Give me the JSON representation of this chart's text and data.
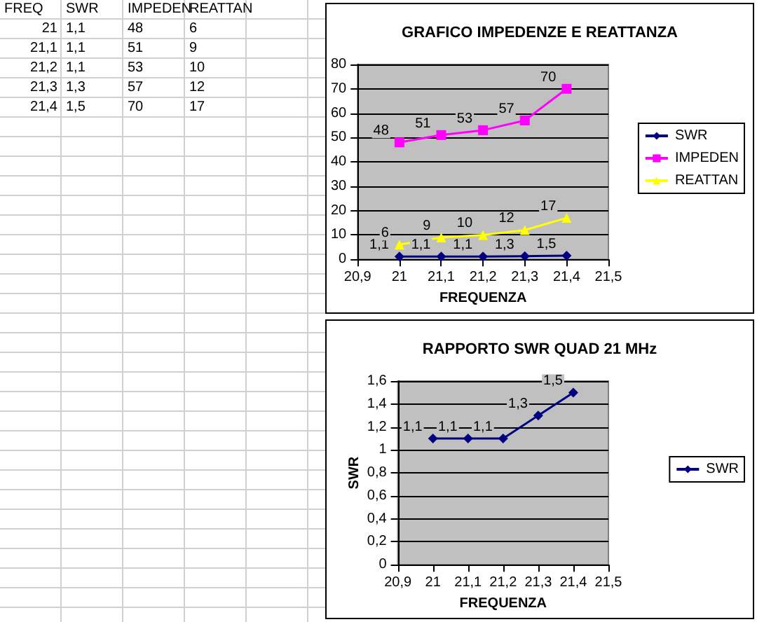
{
  "chart_data": [
    {
      "type": "line",
      "title": "GRAFICO IMPEDENZE E REATTANZA",
      "xlabel": "FREQUENZA",
      "annotations": [
        "FREQ"
      ],
      "x": [
        21,
        21.1,
        21.2,
        21.3,
        21.4
      ],
      "series": [
        {
          "name": "SWR",
          "color": "#000080",
          "marker": "diamond",
          "values": [
            1.1,
            1.1,
            1.1,
            1.3,
            1.5
          ],
          "value_labels": [
            "1,1",
            "1,1",
            "1,1",
            "1,3",
            "1,5"
          ]
        },
        {
          "name": "IMPEDEN",
          "color": "#ff00ff",
          "marker": "square",
          "values": [
            48,
            51,
            53,
            57,
            70
          ],
          "value_labels": [
            "48",
            "51",
            "53",
            "57",
            "70"
          ]
        },
        {
          "name": "REATTAN",
          "color": "#ffff00",
          "marker": "triangle",
          "values": [
            6,
            9,
            10,
            12,
            17
          ],
          "value_labels": [
            "6",
            "9",
            "10",
            "12",
            "17"
          ]
        }
      ],
      "xlim": [
        20.9,
        21.5
      ],
      "xticks": [
        {
          "value": 20.9,
          "label": "20,9"
        },
        {
          "value": 21,
          "label": "21"
        },
        {
          "value": 21.1,
          "label": "21,1"
        },
        {
          "value": 21.2,
          "label": "21,2"
        },
        {
          "value": 21.3,
          "label": "21,3"
        },
        {
          "value": 21.4,
          "label": "21,4"
        },
        {
          "value": 21.5,
          "label": "21,5"
        }
      ],
      "ylim": [
        0,
        80
      ],
      "yticks": [
        0,
        10,
        20,
        30,
        40,
        50,
        60,
        70,
        80
      ],
      "grid": "y",
      "legend": "right"
    },
    {
      "type": "line",
      "title": "RAPPORTO SWR QUAD 21 MHz",
      "xlabel": "FREQUENZA",
      "ylabel": "SWR",
      "x": [
        21,
        21.1,
        21.2,
        21.3,
        21.4
      ],
      "series": [
        {
          "name": "SWR",
          "color": "#000080",
          "marker": "diamond",
          "values": [
            1.1,
            1.1,
            1.1,
            1.3,
            1.5
          ],
          "value_labels": [
            "1,1",
            "1,1",
            "1,1",
            "1,3",
            "1,5"
          ]
        }
      ],
      "xlim": [
        20.9,
        21.5
      ],
      "xticks": [
        {
          "value": 20.9,
          "label": "20,9"
        },
        21,
        {
          "value": 21.1,
          "label": "21,1"
        },
        {
          "value": 21.2,
          "label": "21,2"
        },
        {
          "value": 21.3,
          "label": "21,3"
        },
        {
          "value": 21.4,
          "label": "21,4"
        },
        {
          "value": 21.5,
          "label": "21,5"
        }
      ],
      "ylim": [
        0,
        1.6
      ],
      "yticks": [
        0,
        {
          "value": 0.2,
          "label": "0,2"
        },
        {
          "value": 0.4,
          "label": "0,4"
        },
        {
          "value": 0.6,
          "label": "0,6"
        },
        {
          "value": 0.8,
          "label": "0,8"
        },
        1,
        {
          "value": 1.2,
          "label": "1,2"
        },
        {
          "value": 1.4,
          "label": "1,4"
        },
        {
          "value": 1.6,
          "label": "1,6"
        }
      ],
      "grid": "y",
      "legend": "right"
    }
  ]
}
